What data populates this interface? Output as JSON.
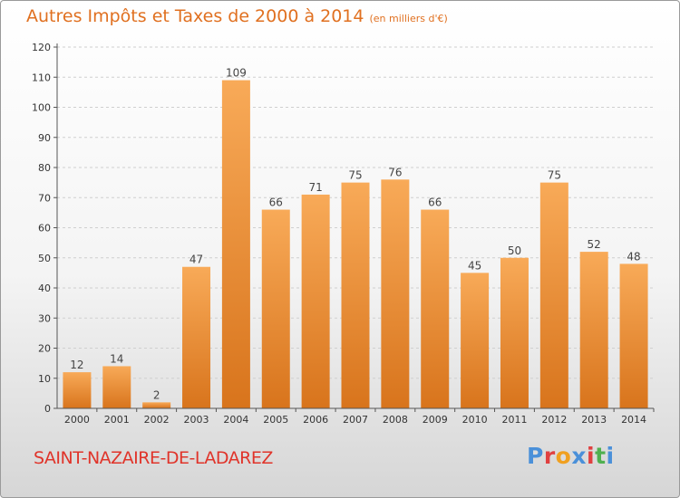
{
  "header": {
    "title": "Autres Impôts et Taxes de 2000 à 2014",
    "unit": "(en milliers d'€)"
  },
  "footer": {
    "commune": "SAINT-NAZAIRE-DE-LADAREZ",
    "logo": {
      "text": "Proxiti",
      "letters": [
        "P",
        "r",
        "o",
        "x",
        "i",
        "t",
        "i"
      ],
      "colors": [
        "#4a90d9",
        "#e04040",
        "#f0a020",
        "#4a90d9",
        "#e04040",
        "#50b050",
        "#4a90d9"
      ]
    }
  },
  "colors": {
    "accent": "#e07020",
    "bar_top": "#f8aa58",
    "bar_bottom": "#d8741c",
    "commune": "#e0342a"
  },
  "chart_data": {
    "type": "bar",
    "title": "Autres Impôts et Taxes de 2000 à 2014",
    "xlabel": "",
    "ylabel": "",
    "categories": [
      "2000",
      "2001",
      "2002",
      "2003",
      "2004",
      "2005",
      "2006",
      "2007",
      "2008",
      "2009",
      "2010",
      "2011",
      "2012",
      "2013",
      "2014"
    ],
    "values": [
      12,
      14,
      2,
      47,
      109,
      66,
      71,
      75,
      76,
      66,
      45,
      50,
      75,
      52,
      48
    ],
    "ylim": [
      0,
      120
    ],
    "yticks": [
      0,
      10,
      20,
      30,
      40,
      50,
      60,
      70,
      80,
      90,
      100,
      110,
      120
    ],
    "grid": true,
    "legend": "none"
  }
}
